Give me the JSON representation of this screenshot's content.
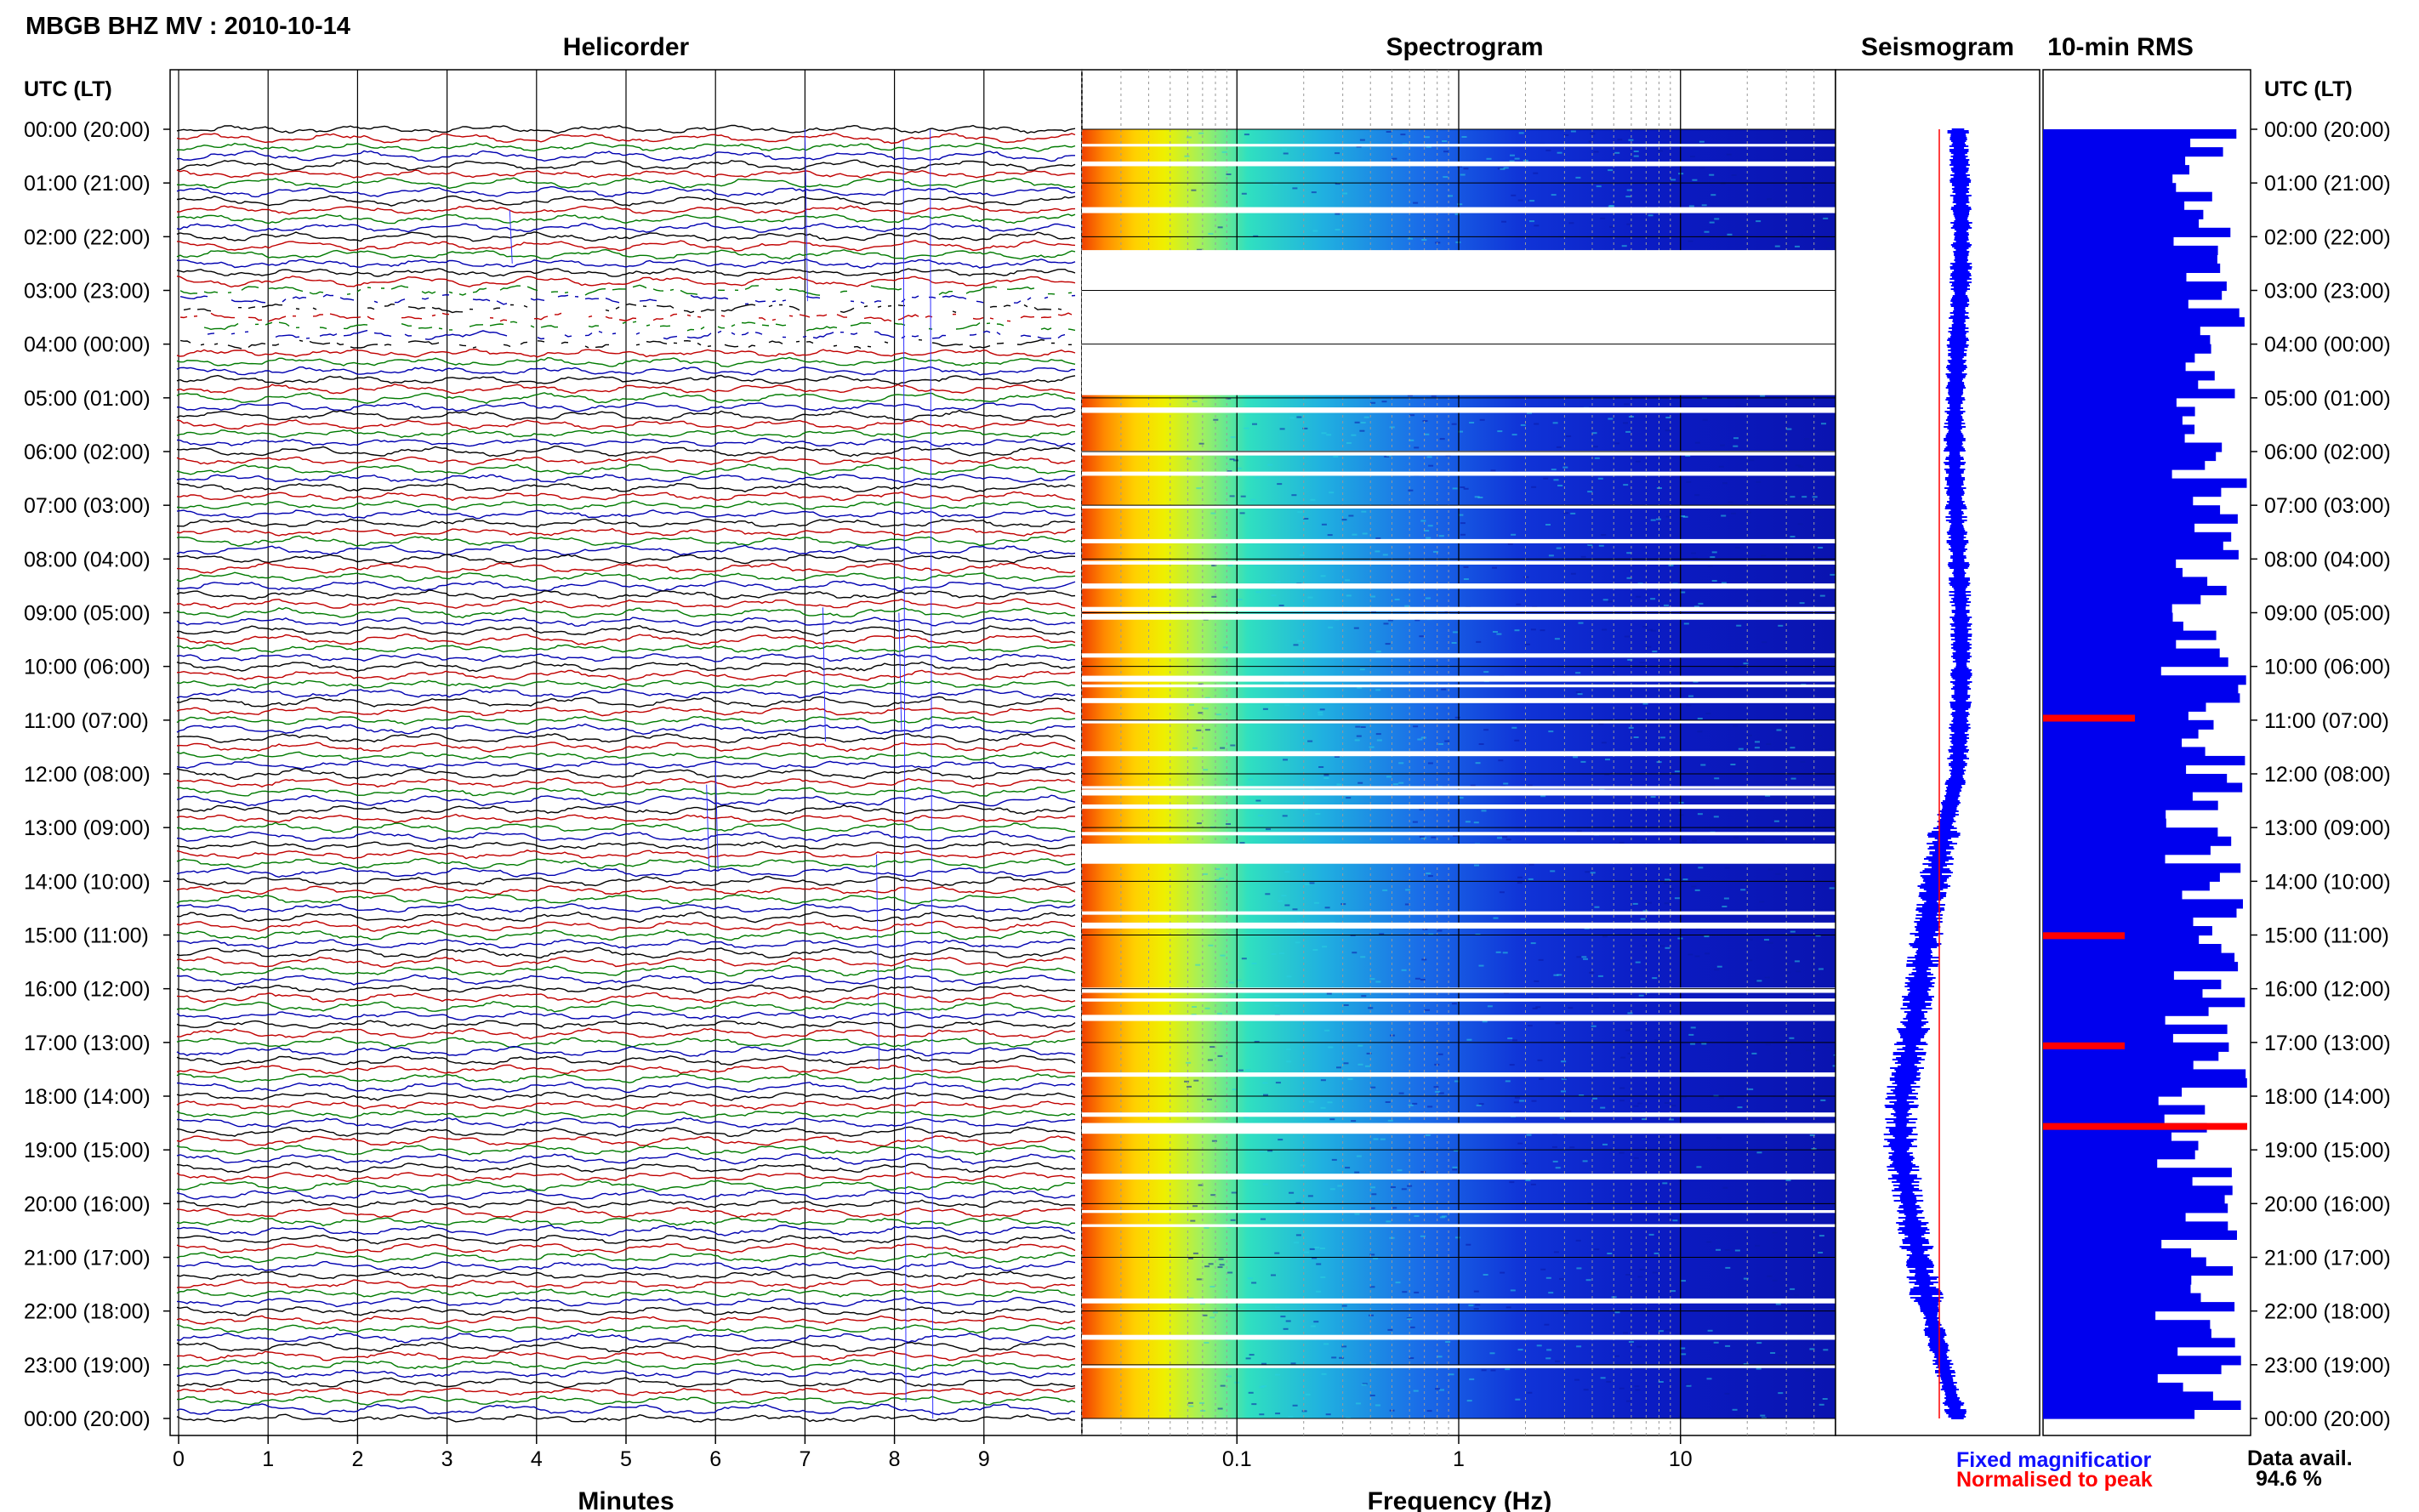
{
  "header": {
    "title": "MBGB BHZ MV : 2010-10-14"
  },
  "panels": {
    "helicorder": "Helicorder",
    "spectrogram": "Spectrogram",
    "seismogram": "Seismogram",
    "rms": "10-min RMS"
  },
  "y_axis": {
    "label_left": "UTC (LT)",
    "label_right": "UTC (LT)",
    "ticks": [
      "00:00 (20:00)",
      "01:00 (21:00)",
      "02:00 (22:00)",
      "03:00 (23:00)",
      "04:00 (00:00)",
      "05:00 (01:00)",
      "06:00 (02:00)",
      "07:00 (03:00)",
      "08:00 (04:00)",
      "09:00 (05:00)",
      "10:00 (06:00)",
      "11:00 (07:00)",
      "12:00 (08:00)",
      "13:00 (09:00)",
      "14:00 (10:00)",
      "15:00 (11:00)",
      "16:00 (12:00)",
      "17:00 (13:00)",
      "18:00 (14:00)",
      "19:00 (15:00)",
      "20:00 (16:00)",
      "21:00 (17:00)",
      "22:00 (18:00)",
      "23:00 (19:00)",
      "00:00 (20:00)"
    ]
  },
  "legend": {
    "fixed": "Fixed magnificatior",
    "normalised": "Normalised to peak",
    "availability_label": "Data avail.",
    "availability_value": "94.6 %"
  },
  "colors": {
    "trace_cycle": [
      "#000000",
      "#c00000",
      "#007a00",
      "#0000b0"
    ],
    "seismogram_fixed": "#0000ff",
    "seismogram_normalised": "#ff0000",
    "rms_bar": "#0000ee",
    "rms_highlight": "#ff0000"
  },
  "chart_data": {
    "type": "helicorder+spectrogram+seismogram+rms",
    "helicorder": {
      "xlabel": "Minutes",
      "xticks": [
        "0",
        "1",
        "2",
        "3",
        "4",
        "5",
        "6",
        "7",
        "8",
        "9"
      ],
      "xlim": [
        0,
        10
      ],
      "trace_minutes": 10,
      "traces_per_hour": 6,
      "hours": 24,
      "gap_hours": [
        [
          3.0,
          4.1
        ]
      ]
    },
    "spectrogram": {
      "xlabel": "Frequency (Hz)",
      "xscale": "log",
      "xlim": [
        0.02,
        50
      ],
      "xticks": [
        "0.1",
        "1",
        "10"
      ],
      "gap_hours": [
        [
          2.25,
          4.95
        ],
        [
          13.3,
          13.65
        ],
        [
          18.5,
          18.7
        ]
      ]
    },
    "seismogram": {
      "series": [
        {
          "name": "Fixed magnificatior"
        },
        {
          "name": "Normalised to peak"
        }
      ]
    },
    "rms": {
      "resolution_minutes": 10,
      "availability_percent": 94.6
    }
  }
}
